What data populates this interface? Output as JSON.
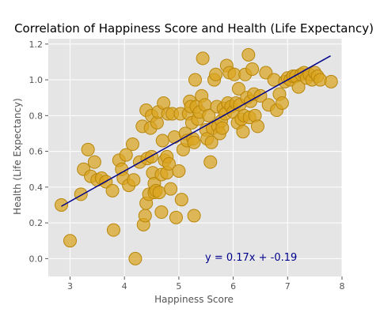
{
  "chart_data": {
    "type": "scatter",
    "title": "Correlation of Happiness Score and Health (Life Expectancy)",
    "xlabel": "Happiness Score",
    "ylabel": "Health (Life Expectancy)",
    "xlim": [
      2.6,
      8.0
    ],
    "ylim": [
      -0.1,
      1.23
    ],
    "xticks": [
      3,
      4,
      5,
      6,
      7,
      8
    ],
    "yticks": [
      0.0,
      0.2,
      0.4,
      0.6,
      0.8,
      1.0,
      1.2
    ],
    "grid": true,
    "colors": {
      "background": "#e5e5e5",
      "grid": "#ffffff",
      "point_fill": "#daa520",
      "point_edge": "#b8860b",
      "line": "#00008b",
      "annotation": "#00008b"
    },
    "annotation": "y = 0.17x + -0.19",
    "trendline": {
      "slope": 0.17,
      "intercept": -0.19,
      "x_range": [
        2.84,
        7.79
      ]
    },
    "points": [
      [
        2.84,
        0.3
      ],
      [
        3.0,
        0.1
      ],
      [
        3.2,
        0.36
      ],
      [
        3.25,
        0.5
      ],
      [
        3.33,
        0.61
      ],
      [
        3.38,
        0.46
      ],
      [
        3.45,
        0.54
      ],
      [
        3.5,
        0.44
      ],
      [
        3.58,
        0.45
      ],
      [
        3.66,
        0.43
      ],
      [
        3.78,
        0.38
      ],
      [
        3.8,
        0.16
      ],
      [
        3.9,
        0.55
      ],
      [
        3.95,
        0.5
      ],
      [
        3.98,
        0.45
      ],
      [
        4.03,
        0.58
      ],
      [
        4.08,
        0.41
      ],
      [
        4.15,
        0.64
      ],
      [
        4.17,
        0.44
      ],
      [
        4.2,
        0.0
      ],
      [
        4.28,
        0.54
      ],
      [
        4.33,
        0.74
      ],
      [
        4.35,
        0.19
      ],
      [
        4.38,
        0.24
      ],
      [
        4.4,
        0.31
      ],
      [
        4.4,
        0.83
      ],
      [
        4.42,
        0.56
      ],
      [
        4.45,
        0.36
      ],
      [
        4.48,
        0.73
      ],
      [
        4.5,
        0.57
      ],
      [
        4.5,
        0.8
      ],
      [
        4.52,
        0.48
      ],
      [
        4.55,
        0.42
      ],
      [
        4.55,
        0.37
      ],
      [
        4.58,
        0.38
      ],
      [
        4.6,
        0.76
      ],
      [
        4.62,
        0.82
      ],
      [
        4.64,
        0.37
      ],
      [
        4.68,
        0.26
      ],
      [
        4.68,
        0.47
      ],
      [
        4.7,
        0.66
      ],
      [
        4.72,
        0.87
      ],
      [
        4.74,
        0.55
      ],
      [
        4.78,
        0.48
      ],
      [
        4.78,
        0.57
      ],
      [
        4.8,
        0.81
      ],
      [
        4.82,
        0.53
      ],
      [
        4.85,
        0.39
      ],
      [
        4.88,
        0.81
      ],
      [
        4.92,
        0.68
      ],
      [
        4.95,
        0.23
      ],
      [
        5.0,
        0.49
      ],
      [
        5.03,
        0.81
      ],
      [
        5.05,
        0.33
      ],
      [
        5.08,
        0.61
      ],
      [
        5.12,
        0.7
      ],
      [
        5.15,
        0.66
      ],
      [
        5.18,
        0.81
      ],
      [
        5.2,
        0.88
      ],
      [
        5.22,
        0.85
      ],
      [
        5.24,
        0.76
      ],
      [
        5.26,
        0.67
      ],
      [
        5.28,
        0.24
      ],
      [
        5.28,
        0.65
      ],
      [
        5.3,
        1.0
      ],
      [
        5.32,
        0.85
      ],
      [
        5.35,
        0.78
      ],
      [
        5.38,
        0.82
      ],
      [
        5.42,
        0.91
      ],
      [
        5.44,
        1.12
      ],
      [
        5.48,
        0.86
      ],
      [
        5.5,
        0.72
      ],
      [
        5.52,
        0.67
      ],
      [
        5.55,
        0.8
      ],
      [
        5.58,
        0.54
      ],
      [
        5.6,
        0.65
      ],
      [
        5.62,
        0.73
      ],
      [
        5.65,
        1.0
      ],
      [
        5.68,
        1.03
      ],
      [
        5.7,
        0.85
      ],
      [
        5.72,
        0.74
      ],
      [
        5.75,
        0.7
      ],
      [
        5.78,
        0.77
      ],
      [
        5.8,
        0.73
      ],
      [
        5.82,
        0.84
      ],
      [
        5.85,
        0.81
      ],
      [
        5.88,
        1.08
      ],
      [
        5.9,
        0.87
      ],
      [
        5.93,
        1.04
      ],
      [
        5.96,
        0.85
      ],
      [
        6.0,
        0.82
      ],
      [
        6.02,
        1.03
      ],
      [
        6.05,
        0.87
      ],
      [
        6.08,
        0.76
      ],
      [
        6.1,
        0.95
      ],
      [
        6.12,
        0.86
      ],
      [
        6.15,
        0.78
      ],
      [
        6.18,
        0.71
      ],
      [
        6.2,
        0.8
      ],
      [
        6.22,
        1.03
      ],
      [
        6.25,
        0.9
      ],
      [
        6.28,
        1.14
      ],
      [
        6.3,
        0.79
      ],
      [
        6.32,
        0.88
      ],
      [
        6.35,
        1.06
      ],
      [
        6.38,
        0.92
      ],
      [
        6.4,
        0.8
      ],
      [
        6.45,
        0.74
      ],
      [
        6.5,
        0.91
      ],
      [
        6.6,
        1.04
      ],
      [
        6.65,
        0.86
      ],
      [
        6.75,
        1.0
      ],
      [
        6.8,
        0.83
      ],
      [
        6.85,
        0.92
      ],
      [
        6.9,
        0.87
      ],
      [
        6.95,
        0.99
      ],
      [
        7.0,
        1.01
      ],
      [
        7.05,
        1.0
      ],
      [
        7.1,
        1.02
      ],
      [
        7.15,
        1.02
      ],
      [
        7.2,
        0.96
      ],
      [
        7.25,
        1.03
      ],
      [
        7.3,
        1.04
      ],
      [
        7.35,
        1.01
      ],
      [
        7.4,
        1.03
      ],
      [
        7.45,
        1.0
      ],
      [
        7.5,
        1.04
      ],
      [
        7.55,
        1.02
      ],
      [
        7.6,
        1.0
      ],
      [
        7.8,
        0.99
      ]
    ]
  }
}
